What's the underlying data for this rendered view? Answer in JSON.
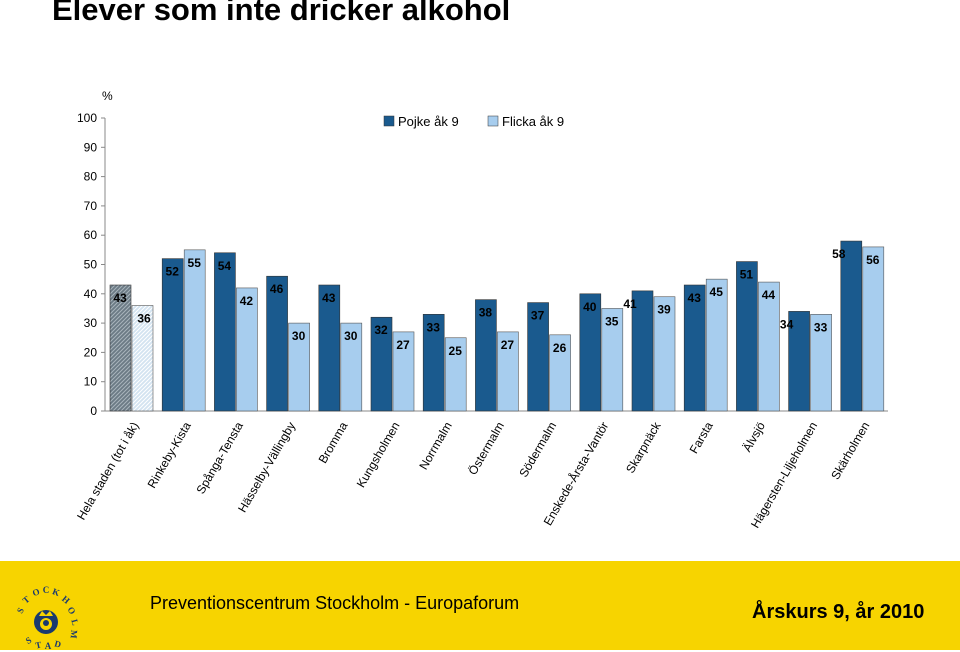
{
  "chart_data": {
    "type": "bar",
    "title": "Elever som inte dricker alkohol",
    "ylabel": "%",
    "ylim": [
      0,
      100
    ],
    "yticks": [
      0,
      10,
      20,
      30,
      40,
      50,
      60,
      70,
      80,
      90,
      100
    ],
    "grid": false,
    "legend_position": "top",
    "categories": [
      "Hela staden (tot i åk)",
      "Rinkeby-Kista",
      "Spånga-Tensta",
      "Hässelby-Vällingby",
      "Bromma",
      "Kungsholmen",
      "Norrmalm",
      "Östermalm",
      "Södermalm",
      "Enskede-Årsta-Vantör",
      "Skarpnäck",
      "Farsta",
      "Älvsjö",
      "Hägersten-Liljeholmen",
      "Skärholmen"
    ],
    "series": [
      {
        "name": "Pojke åk 9",
        "color": "#1a5a8e",
        "values": [
          43,
          52,
          54,
          46,
          43,
          32,
          33,
          38,
          37,
          40,
          41,
          43,
          51,
          34,
          58
        ]
      },
      {
        "name": "Flicka åk 9",
        "color": "#a7cdee",
        "values": [
          36,
          55,
          42,
          30,
          30,
          27,
          25,
          27,
          26,
          35,
          39,
          45,
          44,
          33,
          56
        ]
      }
    ]
  },
  "footer": {
    "organization": "Preventionscentrum Stockholm - Europaforum",
    "grade_year": "Årskurs 9, år 2010"
  }
}
